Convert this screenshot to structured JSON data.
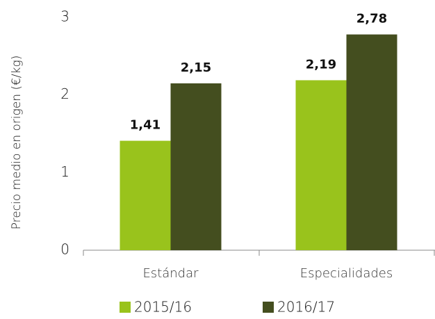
{
  "chart_data": {
    "type": "bar",
    "y_label": "Precio medio en origen  (€/kg)",
    "categories": [
      "Estándar",
      "Especialidades"
    ],
    "series": [
      {
        "name": "2015/16",
        "color": "#99c31c",
        "values": [
          1.41,
          2.19
        ],
        "value_labels": [
          "1,41",
          "2,19"
        ]
      },
      {
        "name": "2016/17",
        "color": "#444e1f",
        "values": [
          2.15,
          2.78
        ],
        "value_labels": [
          "2,15",
          "2,78"
        ]
      }
    ],
    "ylim": [
      0,
      3
    ],
    "yticks": [
      0,
      1,
      2,
      3
    ],
    "grid": false
  }
}
